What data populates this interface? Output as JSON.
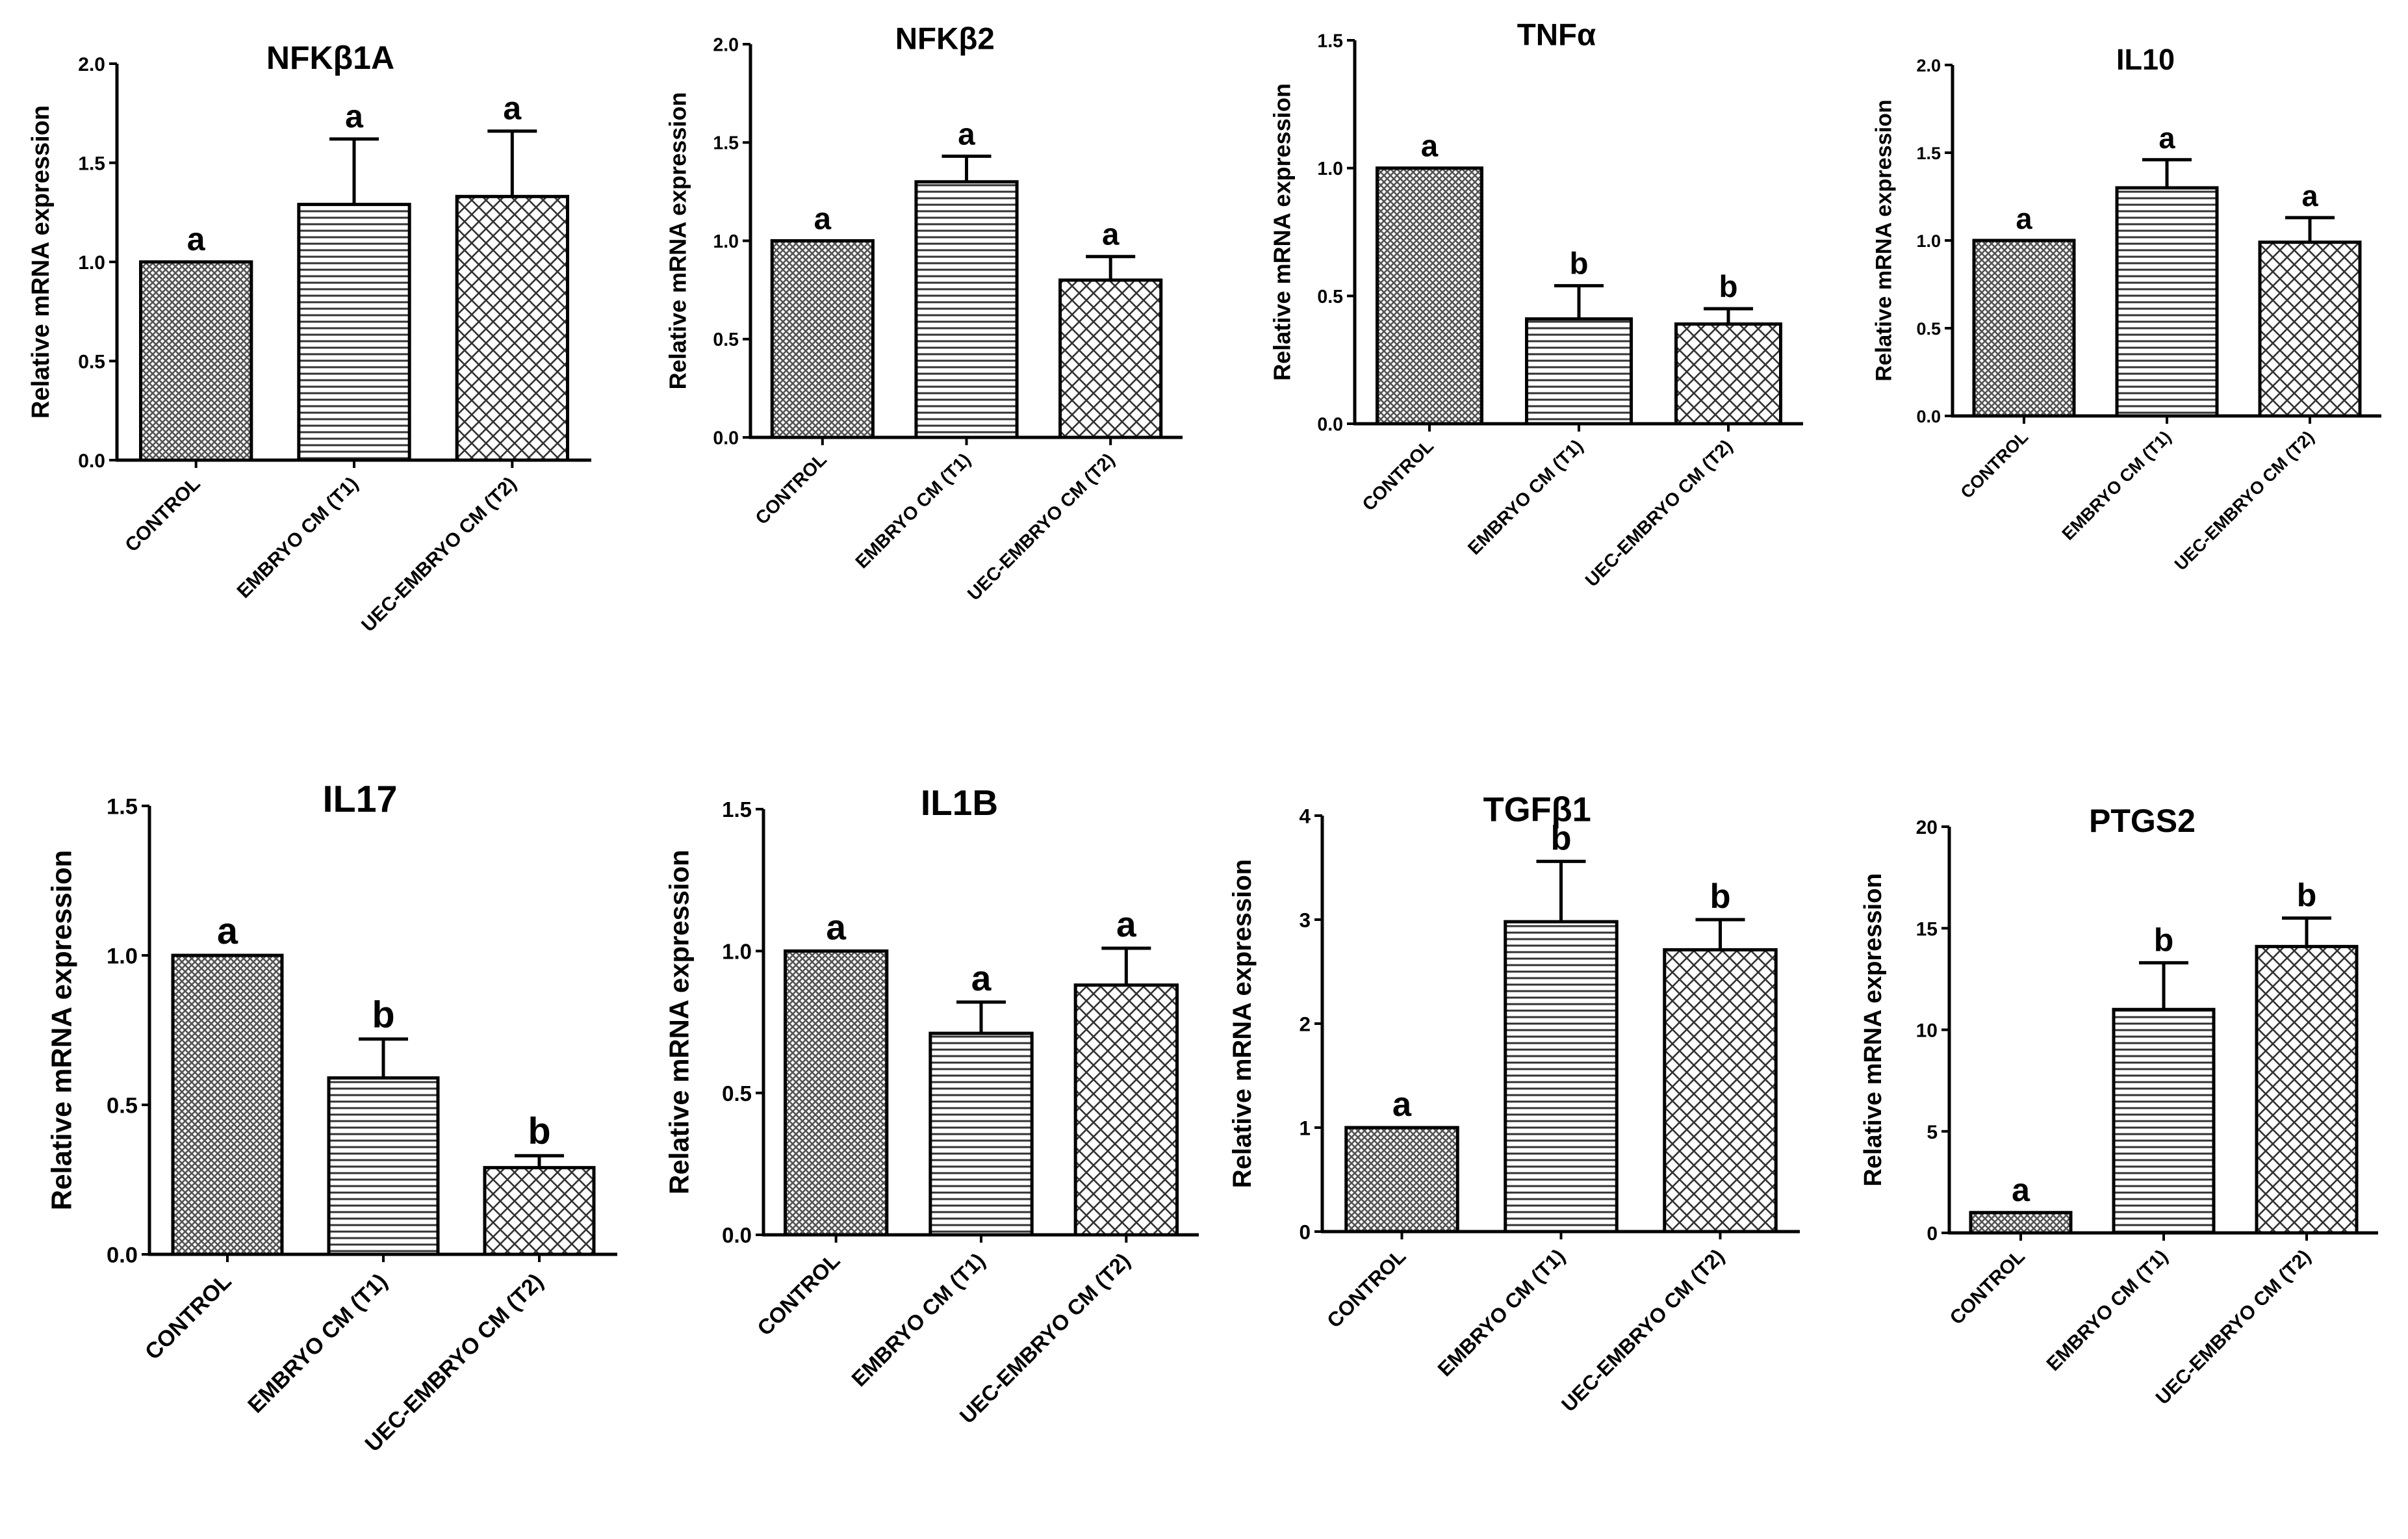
{
  "figure": {
    "panel_count": 8
  },
  "chart_data": [
    {
      "type": "bar",
      "title": "NFKβ1A",
      "xlabel": "",
      "ylabel": "Relative mRNA expression",
      "ylim": [
        0,
        2.0
      ],
      "ytick_labels": [
        "0.0",
        "0.5",
        "1.0",
        "1.5",
        "2.0"
      ],
      "categories": [
        "CONTROL",
        "EMBRYO CM (T1)",
        "UEC-EMBRYO CM (T2)"
      ],
      "values": [
        1.0,
        1.29,
        1.33
      ],
      "errors": [
        0.0,
        0.33,
        0.33
      ],
      "significance": [
        "a",
        "a",
        "a"
      ]
    },
    {
      "type": "bar",
      "title": "NFKβ2",
      "xlabel": "",
      "ylabel": "Relative mRNA expression",
      "ylim": [
        0,
        2.0
      ],
      "ytick_labels": [
        "0.0",
        "0.5",
        "1.0",
        "1.5",
        "2.0"
      ],
      "categories": [
        "CONTROL",
        "EMBRYO CM (T1)",
        "UEC-EMBRYO CM (T2)"
      ],
      "values": [
        1.0,
        1.3,
        0.8
      ],
      "errors": [
        0.0,
        0.13,
        0.12
      ],
      "significance": [
        "a",
        "a",
        "a"
      ]
    },
    {
      "type": "bar",
      "title": "TNFα",
      "xlabel": "",
      "ylabel": "Relative mRNA expression",
      "ylim": [
        0,
        1.5
      ],
      "ytick_labels": [
        "0.0",
        "0.5",
        "1.0",
        "1.5"
      ],
      "categories": [
        "CONTROL",
        "EMBRYO CM (T1)",
        "UEC-EMBRYO CM (T2)"
      ],
      "values": [
        1.0,
        0.41,
        0.39
      ],
      "errors": [
        0.0,
        0.13,
        0.06
      ],
      "significance": [
        "a",
        "b",
        "b"
      ]
    },
    {
      "type": "bar",
      "title": "IL10",
      "xlabel": "",
      "ylabel": "Relative mRNA expression",
      "ylim": [
        0,
        2.0
      ],
      "ytick_labels": [
        "0.0",
        "0.5",
        "1.0",
        "1.5",
        "2.0"
      ],
      "categories": [
        "CONTROL",
        "EMBRYO CM (T1)",
        "UEC-EMBRYO CM (T2)"
      ],
      "values": [
        1.0,
        1.3,
        0.99
      ],
      "errors": [
        0.0,
        0.16,
        0.14
      ],
      "significance": [
        "a",
        "a",
        "a"
      ]
    },
    {
      "type": "bar",
      "title": "IL17",
      "xlabel": "",
      "ylabel": "Relative mRNA expression",
      "ylim": [
        0,
        1.5
      ],
      "ytick_labels": [
        "0.0",
        "0.5",
        "1.0",
        "1.5"
      ],
      "categories": [
        "CONTROL",
        "EMBRYO CM (T1)",
        "UEC-EMBRYO CM (T2)"
      ],
      "values": [
        1.0,
        0.59,
        0.29
      ],
      "errors": [
        0.0,
        0.13,
        0.04
      ],
      "significance": [
        "a",
        "b",
        "b"
      ]
    },
    {
      "type": "bar",
      "title": "IL1B",
      "xlabel": "",
      "ylabel": "Relative mRNA expression",
      "ylim": [
        0,
        1.5
      ],
      "ytick_labels": [
        "0.0",
        "0.5",
        "1.0",
        "1.5"
      ],
      "categories": [
        "CONTROL",
        "EMBRYO CM (T1)",
        "UEC-EMBRYO CM (T2)"
      ],
      "values": [
        1.0,
        0.71,
        0.88
      ],
      "errors": [
        0.0,
        0.11,
        0.13
      ],
      "significance": [
        "a",
        "a",
        "a"
      ]
    },
    {
      "type": "bar",
      "title": "TGFβ1",
      "xlabel": "",
      "ylabel": "Relative mRNA expression",
      "ylim": [
        0,
        4
      ],
      "ytick_labels": [
        "0",
        "1",
        "2",
        "3",
        "4"
      ],
      "categories": [
        "CONTROL",
        "EMBRYO CM (T1)",
        "UEC-EMBRYO CM (T2)"
      ],
      "values": [
        1.0,
        2.98,
        2.71
      ],
      "errors": [
        0.0,
        0.58,
        0.29
      ],
      "significance": [
        "a",
        "b",
        "b"
      ]
    },
    {
      "type": "bar",
      "title": "PTGS2",
      "xlabel": "",
      "ylabel": "Relative mRNA expression",
      "ylim": [
        0,
        20
      ],
      "ytick_labels": [
        "0",
        "5",
        "10",
        "15",
        "20"
      ],
      "categories": [
        "CONTROL",
        "EMBRYO CM (T1)",
        "UEC-EMBRYO CM (T2)"
      ],
      "values": [
        1.0,
        11.0,
        14.1
      ],
      "errors": [
        0.0,
        2.3,
        1.4
      ],
      "significance": [
        "a",
        "b",
        "b"
      ]
    }
  ]
}
